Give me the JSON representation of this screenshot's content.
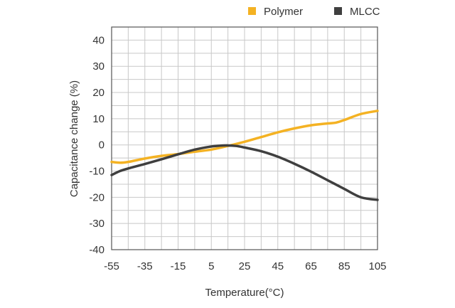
{
  "chart_data": {
    "type": "line",
    "title": "",
    "xlabel": "Temperature(°C)",
    "ylabel": "Capacitance change (%)",
    "xlim": [
      -55,
      105
    ],
    "ylim": [
      -40,
      45
    ],
    "x_ticks": [
      -55,
      -35,
      -15,
      5,
      25,
      45,
      65,
      85,
      105
    ],
    "x_tick_labels": [
      "-55",
      "-35",
      "-15",
      "5",
      "25",
      "45",
      "65",
      "85",
      "105"
    ],
    "y_ticks": [
      -40,
      -30,
      -20,
      -10,
      0,
      10,
      20,
      30,
      40
    ],
    "y_tick_labels": [
      "-40",
      "-30",
      "-20",
      "-10",
      "0",
      "10",
      "20",
      "30",
      "40"
    ],
    "x_grid_step": 10,
    "y_grid_step": 5,
    "grid": true,
    "legend_position": "top-right",
    "series": [
      {
        "name": "Polymer",
        "color": "#F4B223",
        "x": [
          -55,
          -50,
          -45,
          -35,
          -25,
          -15,
          -5,
          5,
          15,
          25,
          35,
          45,
          55,
          65,
          75,
          80,
          85,
          95,
          105
        ],
        "y": [
          -6.5,
          -6.8,
          -6.5,
          -5.2,
          -4.2,
          -3.5,
          -2.6,
          -1.8,
          -0.4,
          1.2,
          3.0,
          4.8,
          6.3,
          7.5,
          8.2,
          8.5,
          9.5,
          11.8,
          13.0
        ]
      },
      {
        "name": "MLCC",
        "color": "#3F3F3F",
        "x": [
          -55,
          -50,
          -45,
          -35,
          -25,
          -15,
          -5,
          5,
          10,
          15,
          20,
          25,
          35,
          45,
          55,
          65,
          75,
          85,
          95,
          105
        ],
        "y": [
          -11.5,
          -10.0,
          -9.0,
          -7.3,
          -5.5,
          -3.6,
          -1.8,
          -0.6,
          -0.3,
          -0.2,
          -0.4,
          -1.0,
          -2.4,
          -4.5,
          -7.2,
          -10.2,
          -13.5,
          -16.8,
          -20.0,
          -21.0
        ]
      }
    ]
  }
}
